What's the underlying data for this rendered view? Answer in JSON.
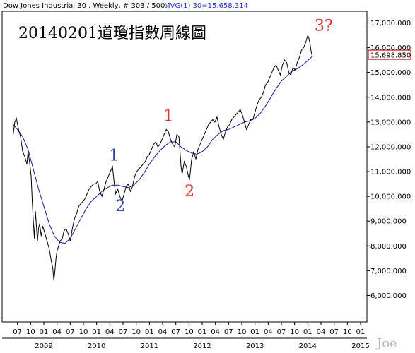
{
  "header": {
    "symbol_text": "Dow Jones Industrial 30 , Weekly, # 303 / 500,",
    "indicator_text": "MVG(1) 30=15,658.314"
  },
  "last_value_label": "15,698.850",
  "watermark": "Joe",
  "colors": {
    "price": "#000000",
    "ma": "#1a1a99",
    "header_indicator": "#2233cc",
    "annotation_blue": "#3344aa",
    "annotation_red": "#dd3333",
    "last_label_border": "#cc0000",
    "last_label_text": "#cc0000"
  },
  "chart_data": {
    "type": "line",
    "title": "20140201道瓊指數周線圖",
    "xlabel": "",
    "ylabel": "",
    "ylim": [
      6000,
      17200
    ],
    "xlim": [
      2008.42,
      2015.1
    ],
    "grid": false,
    "y_ticks": [
      {
        "value": 6000,
        "label": "6,000.000"
      },
      {
        "value": 7000,
        "label": "7,000.000"
      },
      {
        "value": 8000,
        "label": "8,000.000"
      },
      {
        "value": 9000,
        "label": "9,000.000"
      },
      {
        "value": 10000,
        "label": "10,000.000"
      },
      {
        "value": 11000,
        "label": "11,000.000"
      },
      {
        "value": 12000,
        "label": "12,000.000"
      },
      {
        "value": 13000,
        "label": "13,000.000"
      },
      {
        "value": 14000,
        "label": "14,000.000"
      },
      {
        "value": 15000,
        "label": "15,000.000"
      },
      {
        "value": 16000,
        "label": "16,000.000"
      },
      {
        "value": 17000,
        "label": "17,000.000"
      }
    ],
    "x_month_ticks": [
      {
        "t": 2008.5,
        "label": "07"
      },
      {
        "t": 2008.75,
        "label": "10"
      },
      {
        "t": 2009.0,
        "label": "01"
      },
      {
        "t": 2009.25,
        "label": "04"
      },
      {
        "t": 2009.5,
        "label": "07"
      },
      {
        "t": 2009.75,
        "label": "10"
      },
      {
        "t": 2010.0,
        "label": "01"
      },
      {
        "t": 2010.25,
        "label": "04"
      },
      {
        "t": 2010.5,
        "label": "07"
      },
      {
        "t": 2010.75,
        "label": "10"
      },
      {
        "t": 2011.0,
        "label": "01"
      },
      {
        "t": 2011.25,
        "label": "04"
      },
      {
        "t": 2011.5,
        "label": "07"
      },
      {
        "t": 2011.75,
        "label": "10"
      },
      {
        "t": 2012.0,
        "label": "01"
      },
      {
        "t": 2012.25,
        "label": "04"
      },
      {
        "t": 2012.5,
        "label": "07"
      },
      {
        "t": 2012.75,
        "label": "10"
      },
      {
        "t": 2013.0,
        "label": "01"
      },
      {
        "t": 2013.25,
        "label": "04"
      },
      {
        "t": 2013.5,
        "label": "07"
      },
      {
        "t": 2013.75,
        "label": "10"
      },
      {
        "t": 2014.0,
        "label": "01"
      },
      {
        "t": 2014.25,
        "label": "04"
      },
      {
        "t": 2014.5,
        "label": "07"
      },
      {
        "t": 2014.75,
        "label": "10"
      },
      {
        "t": 2015.0,
        "label": "01"
      }
    ],
    "x_year_labels": [
      {
        "t": 2009.0,
        "label": "2009"
      },
      {
        "t": 2010.0,
        "label": "2010"
      },
      {
        "t": 2011.0,
        "label": "2011"
      },
      {
        "t": 2012.0,
        "label": "2012"
      },
      {
        "t": 2013.0,
        "label": "2013"
      },
      {
        "t": 2014.0,
        "label": "2014"
      },
      {
        "t": 2015.0,
        "label": "2015"
      }
    ],
    "series": [
      {
        "kind": "price",
        "points": [
          [
            2008.42,
            12500
          ],
          [
            2008.45,
            13000
          ],
          [
            2008.48,
            13150
          ],
          [
            2008.52,
            12700
          ],
          [
            2008.56,
            12400
          ],
          [
            2008.6,
            11800
          ],
          [
            2008.64,
            11600
          ],
          [
            2008.68,
            11300
          ],
          [
            2008.7,
            11800
          ],
          [
            2008.73,
            11400
          ],
          [
            2008.76,
            10800
          ],
          [
            2008.78,
            9800
          ],
          [
            2008.8,
            9000
          ],
          [
            2008.82,
            8300
          ],
          [
            2008.84,
            9400
          ],
          [
            2008.86,
            8800
          ],
          [
            2008.88,
            8200
          ],
          [
            2008.9,
            8700
          ],
          [
            2008.92,
            8900
          ],
          [
            2008.95,
            8400
          ],
          [
            2008.98,
            8800
          ],
          [
            2009.02,
            8500
          ],
          [
            2009.06,
            8200
          ],
          [
            2009.1,
            7900
          ],
          [
            2009.14,
            7400
          ],
          [
            2009.17,
            7100
          ],
          [
            2009.19,
            6600
          ],
          [
            2009.21,
            7000
          ],
          [
            2009.23,
            7500
          ],
          [
            2009.25,
            7800
          ],
          [
            2009.28,
            8000
          ],
          [
            2009.31,
            8200
          ],
          [
            2009.35,
            8300
          ],
          [
            2009.38,
            8600
          ],
          [
            2009.42,
            8700
          ],
          [
            2009.46,
            8500
          ],
          [
            2009.5,
            8200
          ],
          [
            2009.54,
            8700
          ],
          [
            2009.58,
            9100
          ],
          [
            2009.62,
            9300
          ],
          [
            2009.66,
            9600
          ],
          [
            2009.7,
            9700
          ],
          [
            2009.74,
            9800
          ],
          [
            2009.78,
            9900
          ],
          [
            2009.82,
            10100
          ],
          [
            2009.86,
            10300
          ],
          [
            2009.9,
            10400
          ],
          [
            2009.94,
            10500
          ],
          [
            2009.98,
            10500
          ],
          [
            2010.02,
            10600
          ],
          [
            2010.06,
            10200
          ],
          [
            2010.1,
            10000
          ],
          [
            2010.14,
            10300
          ],
          [
            2010.18,
            10600
          ],
          [
            2010.22,
            10800
          ],
          [
            2010.26,
            11000
          ],
          [
            2010.3,
            11200
          ],
          [
            2010.33,
            10600
          ],
          [
            2010.36,
            10100
          ],
          [
            2010.4,
            10300
          ],
          [
            2010.44,
            10000
          ],
          [
            2010.48,
            9800
          ],
          [
            2010.52,
            10100
          ],
          [
            2010.56,
            10400
          ],
          [
            2010.6,
            10500
          ],
          [
            2010.64,
            10200
          ],
          [
            2010.68,
            10400
          ],
          [
            2010.72,
            10800
          ],
          [
            2010.76,
            11000
          ],
          [
            2010.8,
            11100
          ],
          [
            2010.84,
            11200
          ],
          [
            2010.88,
            11300
          ],
          [
            2010.92,
            11400
          ],
          [
            2010.96,
            11600
          ],
          [
            2011.0,
            11700
          ],
          [
            2011.04,
            11900
          ],
          [
            2011.08,
            12100
          ],
          [
            2011.12,
            12200
          ],
          [
            2011.16,
            12000
          ],
          [
            2011.2,
            12100
          ],
          [
            2011.24,
            12300
          ],
          [
            2011.28,
            12500
          ],
          [
            2011.32,
            12700
          ],
          [
            2011.36,
            12600
          ],
          [
            2011.4,
            12300
          ],
          [
            2011.44,
            12100
          ],
          [
            2011.48,
            12000
          ],
          [
            2011.52,
            12500
          ],
          [
            2011.56,
            12400
          ],
          [
            2011.58,
            11800
          ],
          [
            2011.6,
            11200
          ],
          [
            2011.62,
            10900
          ],
          [
            2011.66,
            11400
          ],
          [
            2011.7,
            11200
          ],
          [
            2011.74,
            10800
          ],
          [
            2011.76,
            10700
          ],
          [
            2011.8,
            11500
          ],
          [
            2011.84,
            11800
          ],
          [
            2011.88,
            11500
          ],
          [
            2011.92,
            11900
          ],
          [
            2011.96,
            12100
          ],
          [
            2012.0,
            12300
          ],
          [
            2012.04,
            12500
          ],
          [
            2012.08,
            12700
          ],
          [
            2012.12,
            12900
          ],
          [
            2012.16,
            13000
          ],
          [
            2012.2,
            13100
          ],
          [
            2012.24,
            13000
          ],
          [
            2012.28,
            13200
          ],
          [
            2012.32,
            12800
          ],
          [
            2012.36,
            12500
          ],
          [
            2012.4,
            12300
          ],
          [
            2012.44,
            12600
          ],
          [
            2012.48,
            12800
          ],
          [
            2012.52,
            12900
          ],
          [
            2012.56,
            13100
          ],
          [
            2012.6,
            13200
          ],
          [
            2012.64,
            13300
          ],
          [
            2012.68,
            13400
          ],
          [
            2012.72,
            13500
          ],
          [
            2012.76,
            13300
          ],
          [
            2012.8,
            13000
          ],
          [
            2012.84,
            12700
          ],
          [
            2012.88,
            12900
          ],
          [
            2012.92,
            13100
          ],
          [
            2012.96,
            13100
          ],
          [
            2013.0,
            13400
          ],
          [
            2013.04,
            13700
          ],
          [
            2013.08,
            13900
          ],
          [
            2013.12,
            14000
          ],
          [
            2013.16,
            14200
          ],
          [
            2013.2,
            14500
          ],
          [
            2013.24,
            14600
          ],
          [
            2013.28,
            14800
          ],
          [
            2013.32,
            15000
          ],
          [
            2013.36,
            15200
          ],
          [
            2013.4,
            15300
          ],
          [
            2013.44,
            15100
          ],
          [
            2013.48,
            14900
          ],
          [
            2013.52,
            15300
          ],
          [
            2013.56,
            15500
          ],
          [
            2013.6,
            15400
          ],
          [
            2013.64,
            15000
          ],
          [
            2013.68,
            14900
          ],
          [
            2013.72,
            15200
          ],
          [
            2013.76,
            15100
          ],
          [
            2013.8,
            15400
          ],
          [
            2013.84,
            15600
          ],
          [
            2013.88,
            15900
          ],
          [
            2013.92,
            16000
          ],
          [
            2013.96,
            16200
          ],
          [
            2014.0,
            16500
          ],
          [
            2014.02,
            16400
          ],
          [
            2014.04,
            16200
          ],
          [
            2014.06,
            15900
          ],
          [
            2014.08,
            15700
          ],
          [
            2014.09,
            15700
          ]
        ]
      },
      {
        "kind": "ma",
        "name": "MVG(1) 30",
        "points": [
          [
            2008.42,
            12900
          ],
          [
            2008.5,
            12700
          ],
          [
            2008.6,
            12400
          ],
          [
            2008.7,
            11900
          ],
          [
            2008.8,
            11100
          ],
          [
            2008.9,
            10300
          ],
          [
            2009.0,
            9600
          ],
          [
            2009.1,
            8900
          ],
          [
            2009.2,
            8400
          ],
          [
            2009.3,
            8150
          ],
          [
            2009.4,
            8100
          ],
          [
            2009.5,
            8300
          ],
          [
            2009.6,
            8700
          ],
          [
            2009.7,
            9100
          ],
          [
            2009.8,
            9500
          ],
          [
            2009.9,
            9800
          ],
          [
            2010.0,
            10000
          ],
          [
            2010.1,
            10200
          ],
          [
            2010.2,
            10350
          ],
          [
            2010.3,
            10450
          ],
          [
            2010.4,
            10450
          ],
          [
            2010.5,
            10400
          ],
          [
            2010.6,
            10350
          ],
          [
            2010.7,
            10450
          ],
          [
            2010.8,
            10650
          ],
          [
            2010.9,
            10950
          ],
          [
            2011.0,
            11300
          ],
          [
            2011.1,
            11600
          ],
          [
            2011.2,
            11850
          ],
          [
            2011.3,
            12050
          ],
          [
            2011.4,
            12200
          ],
          [
            2011.5,
            12200
          ],
          [
            2011.6,
            12000
          ],
          [
            2011.7,
            11850
          ],
          [
            2011.8,
            11750
          ],
          [
            2011.9,
            11700
          ],
          [
            2012.0,
            11800
          ],
          [
            2012.1,
            12000
          ],
          [
            2012.2,
            12300
          ],
          [
            2012.3,
            12500
          ],
          [
            2012.4,
            12650
          ],
          [
            2012.5,
            12700
          ],
          [
            2012.6,
            12800
          ],
          [
            2012.7,
            12900
          ],
          [
            2012.8,
            13000
          ],
          [
            2012.9,
            13050
          ],
          [
            2013.0,
            13150
          ],
          [
            2013.1,
            13350
          ],
          [
            2013.2,
            13650
          ],
          [
            2013.3,
            14000
          ],
          [
            2013.4,
            14350
          ],
          [
            2013.5,
            14650
          ],
          [
            2013.6,
            14850
          ],
          [
            2013.7,
            15050
          ],
          [
            2013.8,
            15150
          ],
          [
            2013.9,
            15300
          ],
          [
            2014.0,
            15480
          ],
          [
            2014.09,
            15658
          ]
        ]
      }
    ],
    "annotations": [
      {
        "text": "1",
        "t": 2010.33,
        "v": 11450,
        "color": "blue"
      },
      {
        "text": "2",
        "t": 2010.45,
        "v": 9400,
        "color": "blue"
      },
      {
        "text": "1",
        "t": 2011.36,
        "v": 13050,
        "color": "red"
      },
      {
        "text": "2",
        "t": 2011.76,
        "v": 10000,
        "color": "red"
      },
      {
        "text": "3?",
        "t": 2014.3,
        "v": 16680,
        "color": "red"
      }
    ]
  }
}
